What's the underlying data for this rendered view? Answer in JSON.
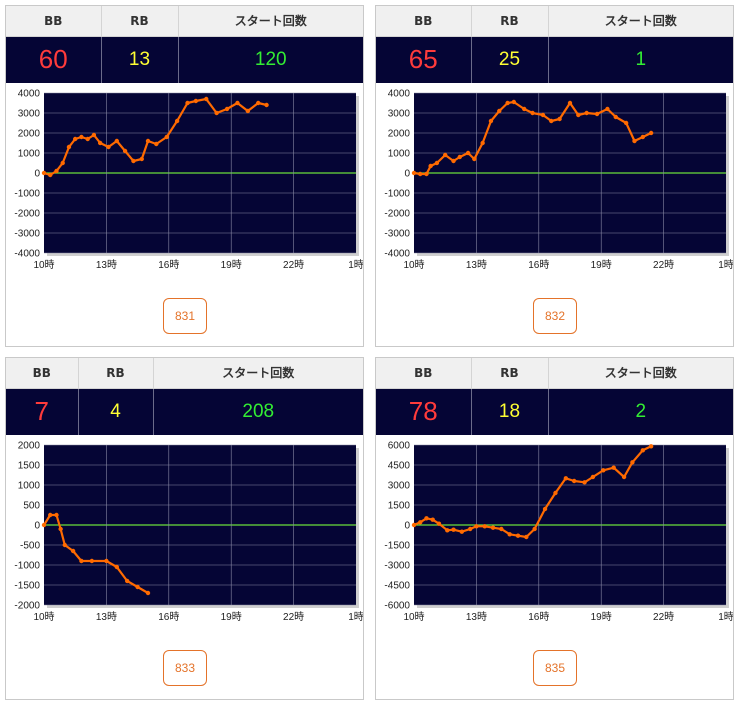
{
  "headers": {
    "bb": "BB",
    "rb": "RB",
    "start": "スタート回数"
  },
  "colors": {
    "bb": "#ff3b3b",
    "rb": "#ffff33",
    "start": "#33ee33",
    "line": "#ff6a00",
    "zero": "#6adf3a",
    "plot_bg": "#050535",
    "grid": "#8a8aa6"
  },
  "x_ticks": [
    "10時",
    "13時",
    "16時",
    "19時",
    "22時",
    "1時"
  ],
  "machines": [
    {
      "bb": "60",
      "rb": "13",
      "start": "120",
      "button": "831",
      "chart_data": {
        "type": "line",
        "x_unit": "hour",
        "xlim": [
          10,
          25
        ],
        "ylim": [
          -4000,
          4000
        ],
        "y_ticks": [
          4000,
          3000,
          2000,
          1000,
          0,
          -1000,
          -2000,
          -3000,
          -4000
        ],
        "points": [
          [
            10,
            0
          ],
          [
            10.3,
            -100
          ],
          [
            10.6,
            100
          ],
          [
            10.9,
            500
          ],
          [
            11.2,
            1300
          ],
          [
            11.5,
            1700
          ],
          [
            11.8,
            1800
          ],
          [
            12.1,
            1700
          ],
          [
            12.4,
            1900
          ],
          [
            12.7,
            1500
          ],
          [
            13.1,
            1300
          ],
          [
            13.5,
            1600
          ],
          [
            13.9,
            1100
          ],
          [
            14.3,
            600
          ],
          [
            14.7,
            700
          ],
          [
            15.0,
            1600
          ],
          [
            15.4,
            1450
          ],
          [
            15.9,
            1800
          ],
          [
            16.4,
            2600
          ],
          [
            16.9,
            3500
          ],
          [
            17.3,
            3600
          ],
          [
            17.8,
            3700
          ],
          [
            18.3,
            3000
          ],
          [
            18.8,
            3200
          ],
          [
            19.3,
            3500
          ],
          [
            19.8,
            3100
          ],
          [
            20.3,
            3500
          ],
          [
            20.7,
            3400
          ]
        ]
      }
    },
    {
      "bb": "65",
      "rb": "25",
      "start": "1",
      "button": "832",
      "chart_data": {
        "type": "line",
        "x_unit": "hour",
        "xlim": [
          10,
          25
        ],
        "ylim": [
          -4000,
          4000
        ],
        "y_ticks": [
          4000,
          3000,
          2000,
          1000,
          0,
          -1000,
          -2000,
          -3000,
          -4000
        ],
        "points": [
          [
            10,
            0
          ],
          [
            10.3,
            -50
          ],
          [
            10.6,
            -50
          ],
          [
            10.8,
            350
          ],
          [
            11.1,
            500
          ],
          [
            11.5,
            900
          ],
          [
            11.9,
            600
          ],
          [
            12.2,
            800
          ],
          [
            12.6,
            1000
          ],
          [
            12.9,
            700
          ],
          [
            13.3,
            1500
          ],
          [
            13.7,
            2600
          ],
          [
            14.1,
            3100
          ],
          [
            14.5,
            3500
          ],
          [
            14.8,
            3550
          ],
          [
            15.3,
            3200
          ],
          [
            15.7,
            3000
          ],
          [
            16.2,
            2900
          ],
          [
            16.6,
            2600
          ],
          [
            17.0,
            2700
          ],
          [
            17.5,
            3500
          ],
          [
            17.9,
            2900
          ],
          [
            18.3,
            3000
          ],
          [
            18.8,
            2950
          ],
          [
            19.3,
            3200
          ],
          [
            19.7,
            2800
          ],
          [
            20.2,
            2500
          ],
          [
            20.6,
            1600
          ],
          [
            21.0,
            1800
          ],
          [
            21.4,
            2000
          ]
        ]
      }
    },
    {
      "bb": "7",
      "rb": "4",
      "start": "208",
      "button": "833",
      "chart_data": {
        "type": "line",
        "x_unit": "hour",
        "xlim": [
          10,
          25
        ],
        "ylim": [
          -2000,
          2000
        ],
        "y_ticks": [
          2000,
          1500,
          1000,
          500,
          0,
          -500,
          -1000,
          -1500,
          -2000
        ],
        "points": [
          [
            10,
            0
          ],
          [
            10.3,
            250
          ],
          [
            10.6,
            250
          ],
          [
            10.8,
            -100
          ],
          [
            11.0,
            -500
          ],
          [
            11.4,
            -650
          ],
          [
            11.8,
            -900
          ],
          [
            12.3,
            -900
          ],
          [
            13.0,
            -900
          ],
          [
            13.5,
            -1050
          ],
          [
            14.0,
            -1400
          ],
          [
            14.5,
            -1550
          ],
          [
            15.0,
            -1700
          ]
        ]
      }
    },
    {
      "bb": "78",
      "rb": "18",
      "start": "2",
      "button": "835",
      "chart_data": {
        "type": "line",
        "x_unit": "hour",
        "xlim": [
          10,
          25
        ],
        "ylim": [
          -6000,
          6000
        ],
        "y_ticks": [
          6000,
          4500,
          3000,
          1500,
          0,
          -1500,
          -3000,
          -4500,
          -6000
        ],
        "points": [
          [
            10,
            0
          ],
          [
            10.3,
            200
          ],
          [
            10.6,
            500
          ],
          [
            10.9,
            400
          ],
          [
            11.2,
            100
          ],
          [
            11.6,
            -400
          ],
          [
            11.9,
            -350
          ],
          [
            12.3,
            -500
          ],
          [
            12.7,
            -300
          ],
          [
            13.0,
            -100
          ],
          [
            13.4,
            -100
          ],
          [
            13.8,
            -200
          ],
          [
            14.2,
            -300
          ],
          [
            14.6,
            -700
          ],
          [
            15.0,
            -800
          ],
          [
            15.4,
            -900
          ],
          [
            15.8,
            -300
          ],
          [
            16.3,
            1200
          ],
          [
            16.8,
            2400
          ],
          [
            17.3,
            3500
          ],
          [
            17.7,
            3300
          ],
          [
            18.2,
            3200
          ],
          [
            18.6,
            3600
          ],
          [
            19.1,
            4100
          ],
          [
            19.6,
            4300
          ],
          [
            20.1,
            3600
          ],
          [
            20.5,
            4700
          ],
          [
            21.0,
            5600
          ],
          [
            21.4,
            5900
          ]
        ]
      }
    }
  ]
}
